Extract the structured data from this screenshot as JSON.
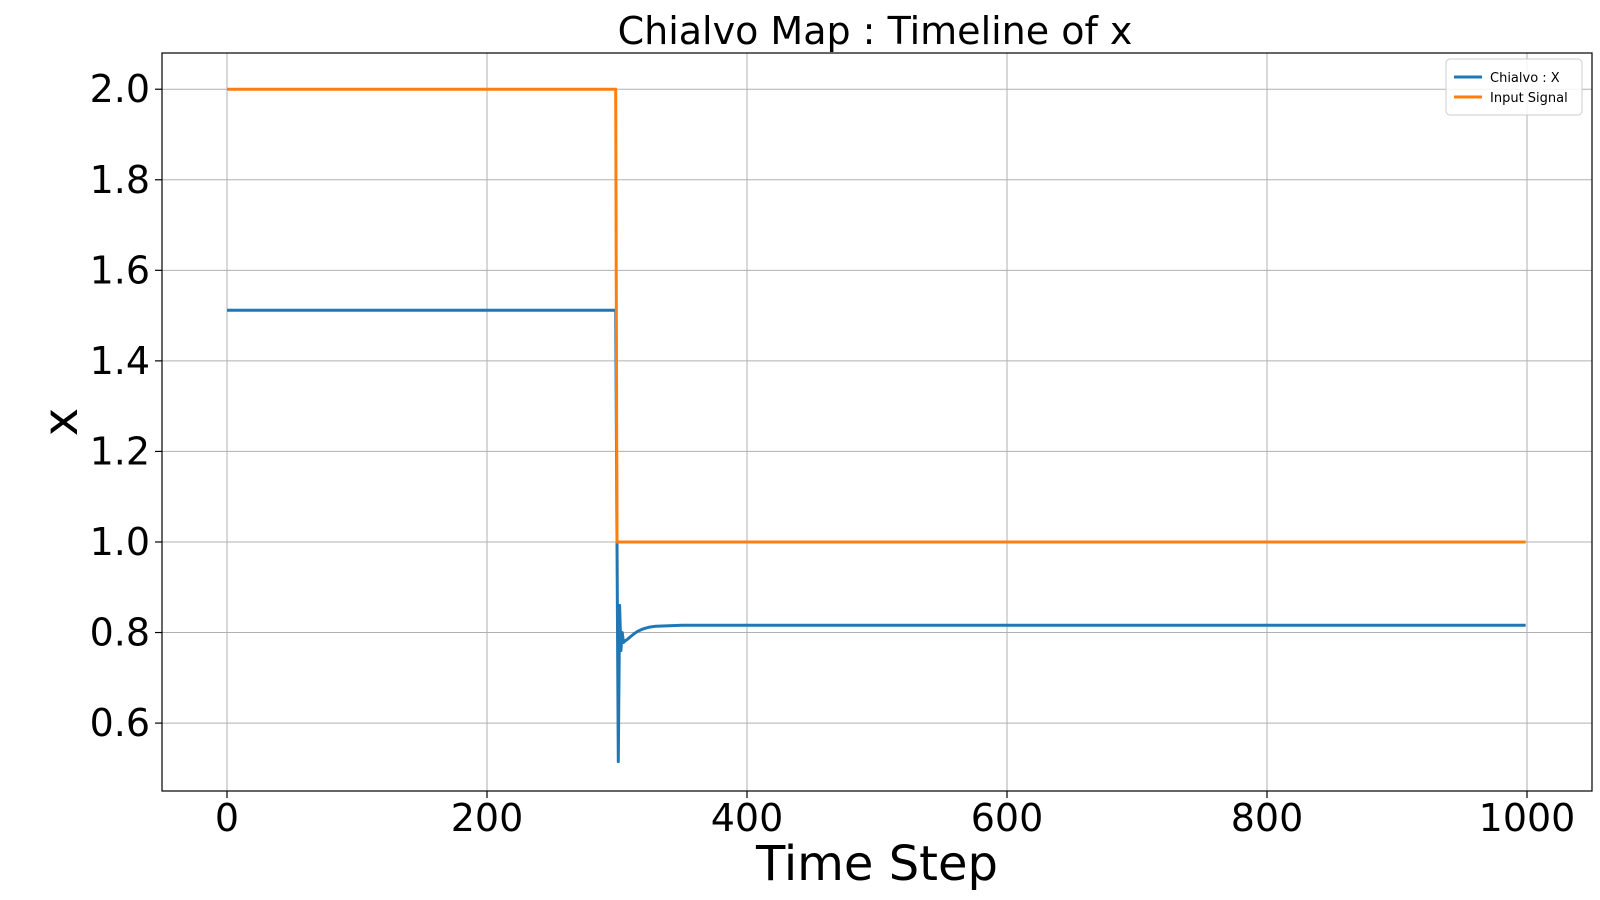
{
  "chart_data": {
    "type": "line",
    "title": "Chialvo Map : Timeline of x",
    "xlabel": "Time Step",
    "ylabel": "x",
    "xlim": [
      -50,
      1050
    ],
    "ylim": [
      0.45,
      2.08
    ],
    "xticks": [
      0,
      200,
      400,
      600,
      800,
      1000
    ],
    "xtick_labels": [
      "0",
      "200",
      "400",
      "600",
      "800",
      "1000"
    ],
    "yticks": [
      0.6,
      0.8,
      1.0,
      1.2,
      1.4,
      1.6,
      1.8,
      2.0
    ],
    "ytick_labels": [
      "0.6",
      "0.8",
      "1.0",
      "1.2",
      "1.4",
      "1.6",
      "1.8",
      "2.0"
    ],
    "grid": true,
    "legend_position": "top-right",
    "series": [
      {
        "name": "Chialvo : X",
        "color": "#1f77b4",
        "x": [
          0,
          299,
          300,
          301,
          302,
          303,
          304,
          305,
          306,
          308,
          310,
          313,
          316,
          320,
          325,
          330,
          340,
          350,
          400,
          600,
          800,
          999
        ],
        "y": [
          1.512,
          1.512,
          1.0,
          0.515,
          0.86,
          0.76,
          0.8,
          0.778,
          0.781,
          0.785,
          0.79,
          0.797,
          0.803,
          0.808,
          0.812,
          0.814,
          0.815,
          0.816,
          0.816,
          0.816,
          0.816,
          0.816
        ]
      },
      {
        "name": "Input Signal",
        "color": "#ff7f0e",
        "x": [
          0,
          299,
          300,
          999
        ],
        "y": [
          2.0,
          2.0,
          1.0,
          1.0
        ]
      }
    ]
  }
}
